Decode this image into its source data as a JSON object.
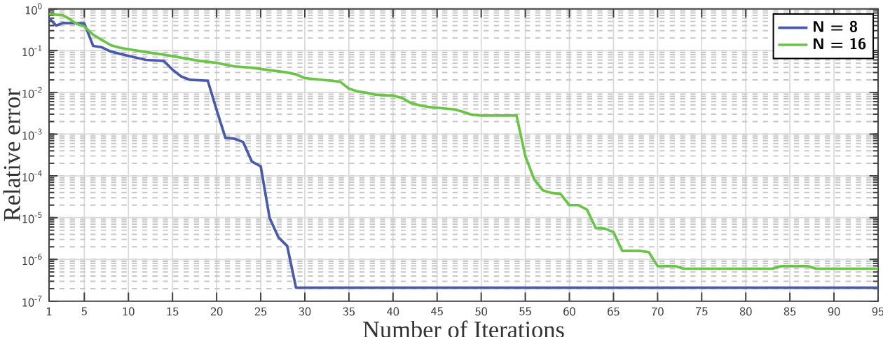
{
  "chart_data": {
    "type": "line",
    "xlabel": "Number of Iterations",
    "ylabel": "Relative error",
    "xlim": [
      1,
      95
    ],
    "xticks": [
      1,
      5,
      10,
      15,
      20,
      25,
      30,
      35,
      40,
      45,
      50,
      55,
      60,
      65,
      70,
      75,
      80,
      85,
      90,
      95
    ],
    "ylim": [
      1e-07,
      1
    ],
    "yticks": [
      {
        "value": 1e-07,
        "label": "10$^{-7}$"
      },
      {
        "value": 1e-06,
        "label": "10$^{-6}$"
      },
      {
        "value": 1e-05,
        "label": "10$^{-5}$"
      },
      {
        "value": 0.0001,
        "label": "10$^{-4}$"
      },
      {
        "value": 0.001,
        "label": "10$^{-3}$"
      },
      {
        "value": 0.01,
        "label": "10$^{-2}$"
      },
      {
        "value": 0.1,
        "label": "10$^{-1}$"
      },
      {
        "value": 1,
        "label": "10$^{0}$"
      }
    ],
    "log": "y",
    "grid": true,
    "legend": "top right",
    "series": [
      {
        "name": "N = 8",
        "color": "#4a5aab",
        "x": [
          1,
          1.8,
          2.6,
          5,
          6,
          7,
          8,
          10,
          12,
          14,
          15,
          16,
          17,
          19,
          20,
          21,
          22,
          23,
          24,
          25,
          26,
          27,
          28,
          29,
          95
        ],
        "values": [
          0.6,
          0.4,
          0.46,
          0.45,
          0.13,
          0.12,
          0.095,
          0.075,
          0.06,
          0.057,
          0.035,
          0.024,
          0.02,
          0.019,
          0.0038,
          0.00081,
          0.00078,
          0.00065,
          0.00022,
          0.00017,
          1e-05,
          3.4e-06,
          2.1e-06,
          2.1e-07,
          2.1e-07
        ]
      },
      {
        "name": "N = 16",
        "color": "#6ac448",
        "x": [
          1,
          2.6,
          3.4,
          4.2,
          5,
          6,
          7,
          8,
          9,
          10,
          12,
          14,
          16,
          18,
          20,
          22,
          24,
          26,
          28,
          29,
          30,
          33,
          34,
          35,
          36,
          37,
          38,
          40,
          41,
          42,
          43,
          44,
          45,
          47,
          48,
          49,
          50,
          54,
          55,
          56,
          57,
          58,
          59,
          60,
          61,
          62,
          63,
          64,
          65,
          66,
          68,
          69,
          70,
          72,
          73,
          83,
          84,
          87,
          88,
          95
        ],
        "values": [
          0.75,
          0.7,
          0.56,
          0.43,
          0.38,
          0.24,
          0.18,
          0.135,
          0.118,
          0.108,
          0.092,
          0.08,
          0.068,
          0.057,
          0.051,
          0.042,
          0.039,
          0.034,
          0.03,
          0.027,
          0.022,
          0.019,
          0.018,
          0.0123,
          0.0105,
          0.0098,
          0.0088,
          0.0083,
          0.0074,
          0.0056,
          0.0049,
          0.0045,
          0.0043,
          0.0039,
          0.0034,
          0.0029,
          0.0028,
          0.0028,
          0.0003,
          8.3e-05,
          4.5e-05,
          3.9e-05,
          3.7e-05,
          2e-05,
          2e-05,
          1.55e-05,
          5.6e-06,
          5.5e-06,
          4.5e-06,
          1.6e-06,
          1.6e-06,
          1.5e-06,
          6.9e-07,
          6.9e-07,
          6e-07,
          6e-07,
          6.9e-07,
          6.9e-07,
          6e-07,
          6e-07
        ]
      }
    ]
  }
}
